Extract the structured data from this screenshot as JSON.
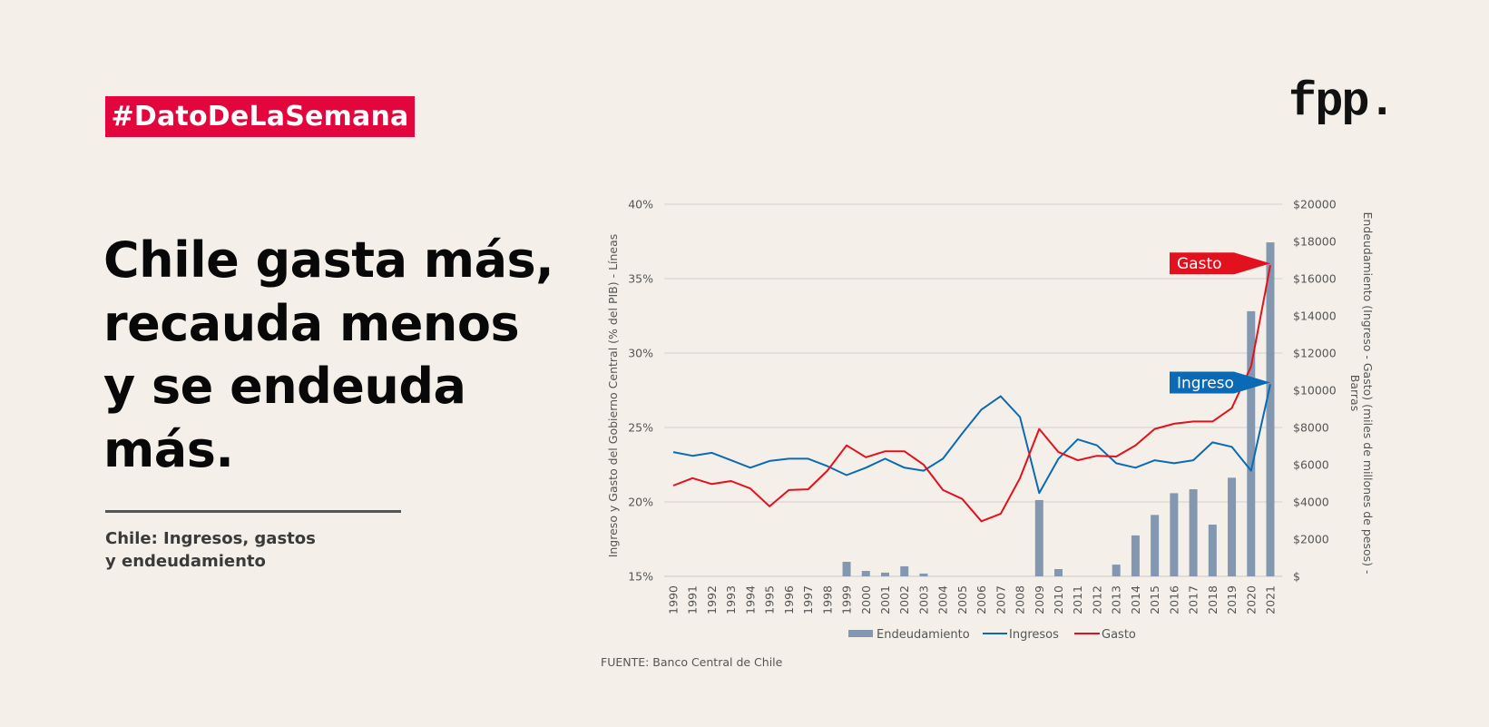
{
  "header": {
    "hashtag": "#DatoDeLaSemana",
    "logo": "fpp."
  },
  "headline": "Chile gasta más,\nrecauda menos\ny se endeuda\nmás.",
  "subtitle": "Chile: Ingresos, gastos\ny endeudamiento",
  "source": "FUENTE: Banco Central de Chile",
  "colors": {
    "background": "#f4f0e9",
    "hashtag_bg": "#e2063d",
    "ingresos": "#0a6ab6",
    "gasto": "#e3101d",
    "endeudamiento": "#8497b0",
    "grid": "#dcdad5"
  },
  "chart_data": {
    "type": "bar+line",
    "title": "Chile: Ingresos, gastos y endeudamiento",
    "x": [
      "1990",
      "1991",
      "1992",
      "1993",
      "1994",
      "1995",
      "1996",
      "1997",
      "1998",
      "1999",
      "2000",
      "2001",
      "2002",
      "2003",
      "2004",
      "2005",
      "2006",
      "2007",
      "2008",
      "2009",
      "2010",
      "2011",
      "2012",
      "2013",
      "2014",
      "2015",
      "2016",
      "2017",
      "2018",
      "2019",
      "2020",
      "2021"
    ],
    "ylabel_left": "Ingreso y Gasto del Gobierno Central (% del PIB) - Líneas",
    "ylabel_right": "Endeudamiento (Ingreso - Gasto) (miles de millones de pesos) - Barras",
    "ylim_left": [
      15,
      40
    ],
    "yticks_left": [
      "15%",
      "20%",
      "25%",
      "30%",
      "35%",
      "40%"
    ],
    "ylim_right": [
      0,
      20000
    ],
    "yticks_right": [
      "$",
      "$2000",
      "$4000",
      "$6000",
      "$8000",
      "$10000",
      "$12000",
      "$14000",
      "$16000",
      "$18000",
      "$20000"
    ],
    "grid": true,
    "legend_position": "bottom",
    "series": [
      {
        "name": "Endeudamiento",
        "type": "bar",
        "axis": "right",
        "values": [
          0,
          0,
          0,
          0,
          0,
          0,
          0,
          0,
          0,
          780,
          290,
          200,
          540,
          150,
          0,
          0,
          0,
          0,
          0,
          4100,
          390,
          0,
          0,
          630,
          2200,
          3300,
          4470,
          4680,
          2780,
          5300,
          14250,
          17950
        ]
      },
      {
        "name": "Ingresos",
        "type": "line",
        "axis": "left",
        "values": [
          23.35,
          23.1,
          23.3,
          22.8,
          22.3,
          22.75,
          22.9,
          22.9,
          22.4,
          21.8,
          22.3,
          22.9,
          22.3,
          22.1,
          22.9,
          24.6,
          26.2,
          27.1,
          25.7,
          20.6,
          22.9,
          24.2,
          23.8,
          22.6,
          22.3,
          22.8,
          22.6,
          22.8,
          24.0,
          23.7,
          22.1,
          27.9
        ]
      },
      {
        "name": "Gasto",
        "type": "line",
        "axis": "left",
        "values": [
          21.1,
          21.6,
          21.2,
          21.4,
          20.9,
          19.7,
          20.8,
          20.85,
          22.1,
          23.8,
          23.0,
          23.4,
          23.4,
          22.5,
          20.8,
          20.2,
          18.7,
          19.2,
          21.6,
          24.9,
          23.35,
          22.8,
          23.1,
          23.05,
          23.8,
          24.9,
          25.25,
          25.4,
          25.4,
          26.3,
          29.1,
          35.9
        ]
      }
    ],
    "annotations": [
      {
        "text": "Gasto",
        "series": "Gasto",
        "at": "2021"
      },
      {
        "text": "Ingreso",
        "series": "Ingresos",
        "at": "2021"
      }
    ]
  }
}
